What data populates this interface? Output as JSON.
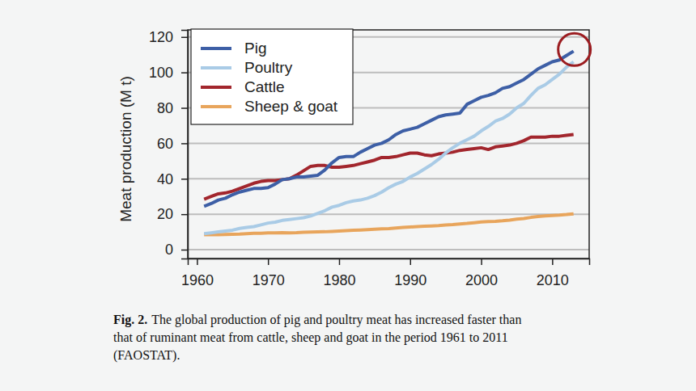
{
  "chart_data": {
    "type": "line",
    "y_label": "Meat production (M t)",
    "caption": {
      "label": "Fig. 2.",
      "lines": [
        "The global production of pig and poultry meat has increased faster than",
        "that of ruminant meat from cattle, sheep and goat in the period 1961 to 2011",
        "(FAOSTAT)."
      ]
    },
    "x": [
      1961,
      1962,
      1963,
      1964,
      1965,
      1966,
      1967,
      1968,
      1969,
      1970,
      1971,
      1972,
      1973,
      1974,
      1975,
      1976,
      1977,
      1978,
      1979,
      1980,
      1981,
      1982,
      1983,
      1984,
      1985,
      1986,
      1987,
      1988,
      1989,
      1990,
      1991,
      1992,
      1993,
      1994,
      1995,
      1996,
      1997,
      1998,
      1999,
      2000,
      2001,
      2002,
      2003,
      2004,
      2005,
      2006,
      2007,
      2008,
      2009,
      2010,
      2011,
      2012,
      2013
    ],
    "series": [
      {
        "name": "Pig",
        "color": "#3d5fa6",
        "values": [
          24.5,
          26,
          28,
          29,
          31,
          32.5,
          33.5,
          34.5,
          34.5,
          35,
          37,
          39.5,
          40,
          41,
          41,
          41.5,
          42,
          45,
          49,
          52,
          52.5,
          52.5,
          55,
          57,
          59,
          60,
          62,
          65,
          67,
          68,
          69,
          71,
          73,
          75,
          76,
          76.5,
          77,
          82,
          84,
          86,
          87,
          88.5,
          91,
          92,
          94,
          96,
          99,
          102,
          104,
          106,
          107,
          109.5,
          112
        ]
      },
      {
        "name": "Poultry",
        "color": "#a9cbe6",
        "values": [
          9,
          9.5,
          10,
          10.5,
          11,
          12,
          12.5,
          13,
          14,
          15,
          15.5,
          16.5,
          17,
          17.5,
          18,
          19,
          20.5,
          22,
          24,
          25,
          26.5,
          27.5,
          28,
          29,
          30.5,
          32.5,
          35,
          37,
          38.5,
          41,
          43,
          45.5,
          48,
          51,
          54.5,
          57.5,
          60,
          62,
          64,
          67,
          69.5,
          72.5,
          74,
          76.5,
          80,
          82.5,
          87,
          91,
          93,
          96,
          99,
          103,
          106
        ]
      },
      {
        "name": "Cattle",
        "color": "#a2262d",
        "values": [
          28.5,
          30,
          31.5,
          32,
          33,
          34.5,
          36,
          37.5,
          38.5,
          39,
          39,
          39.5,
          40,
          42,
          44.5,
          47,
          47.5,
          47.5,
          46.5,
          46.5,
          47,
          47.5,
          48.5,
          49.5,
          50.5,
          52,
          52,
          52.5,
          53.5,
          54.5,
          54.5,
          53.5,
          53,
          54,
          54.5,
          55,
          56,
          56.5,
          57,
          57.5,
          56.5,
          58,
          58.5,
          59,
          60,
          61.5,
          63.5,
          63.5,
          63.5,
          64,
          64,
          64.5,
          65
        ]
      },
      {
        "name": "Sheep & goat",
        "color": "#e8a55c",
        "values": [
          8.5,
          8.5,
          8.5,
          8.6,
          8.7,
          8.8,
          9,
          9.2,
          9.3,
          9.5,
          9.5,
          9.6,
          9.5,
          9.6,
          9.8,
          9.9,
          10,
          10.1,
          10.3,
          10.5,
          10.7,
          10.9,
          11.1,
          11.3,
          11.5,
          11.7,
          11.9,
          12.2,
          12.5,
          12.8,
          13,
          13.2,
          13.4,
          13.6,
          13.9,
          14.1,
          14.5,
          14.8,
          15.2,
          15.6,
          15.8,
          16,
          16.3,
          16.7,
          17.2,
          17.6,
          18.2,
          18.7,
          19,
          19.3,
          19.5,
          19.8,
          20.2
        ]
      }
    ],
    "xlim": [
      1958.7,
      2015.2
    ],
    "xticks": [
      1960,
      1970,
      1980,
      1990,
      2000,
      2010
    ],
    "ylim": [
      -5,
      124
    ],
    "yticks": [
      0,
      20,
      40,
      60,
      80,
      100,
      120
    ],
    "grid": true,
    "legend": "top-left"
  }
}
